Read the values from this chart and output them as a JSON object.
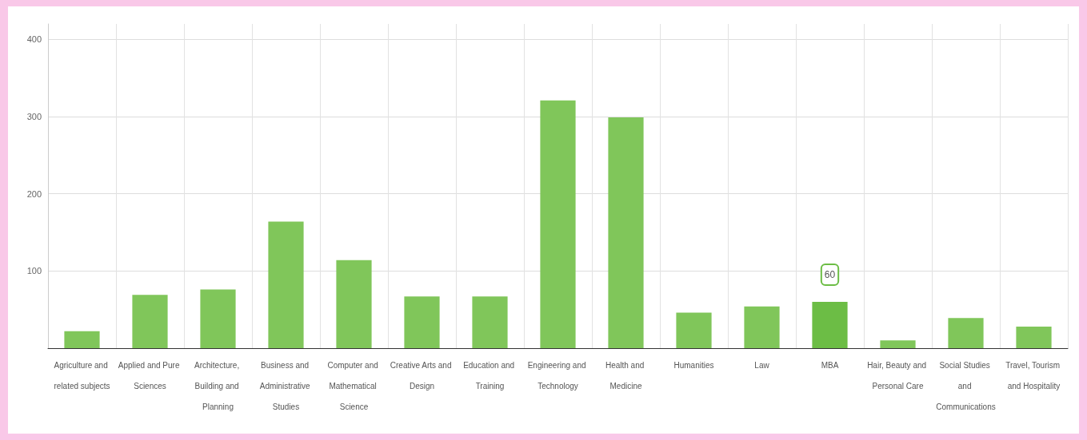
{
  "chart_data": {
    "type": "bar",
    "categories": [
      "Agriculture and related subjects",
      "Applied and Pure Sciences",
      "Architecture, Building and Planning",
      "Business and Administrative Studies",
      "Computer and Mathematical Science",
      "Creative Arts and Design",
      "Education and Training",
      "Engineering and Technology",
      "Health and Medicine",
      "Humanities",
      "Law",
      "MBA",
      "Hair, Beauty and Personal Care",
      "Social Studies and Communications",
      "Travel, Tourism and Hospitality"
    ],
    "values": [
      22,
      69,
      76,
      164,
      114,
      67,
      67,
      321,
      299,
      46,
      54,
      60,
      10,
      39,
      28
    ],
    "colors": [
      "#80c65a",
      "#80c65a",
      "#80c65a",
      "#80c65a",
      "#80c65a",
      "#80c65a",
      "#80c65a",
      "#80c65a",
      "#80c65a",
      "#80c65a",
      "#80c65a",
      "#6cbd45",
      "#80c65a",
      "#80c65a",
      "#80c65a"
    ],
    "value_labels": [
      null,
      null,
      null,
      null,
      null,
      null,
      null,
      null,
      null,
      null,
      null,
      "60",
      null,
      null,
      null
    ],
    "ylim": [
      0,
      420
    ],
    "yticks": [
      {
        "value": 0,
        "label": null
      },
      100,
      200,
      300,
      400
    ],
    "grid": true
  }
}
